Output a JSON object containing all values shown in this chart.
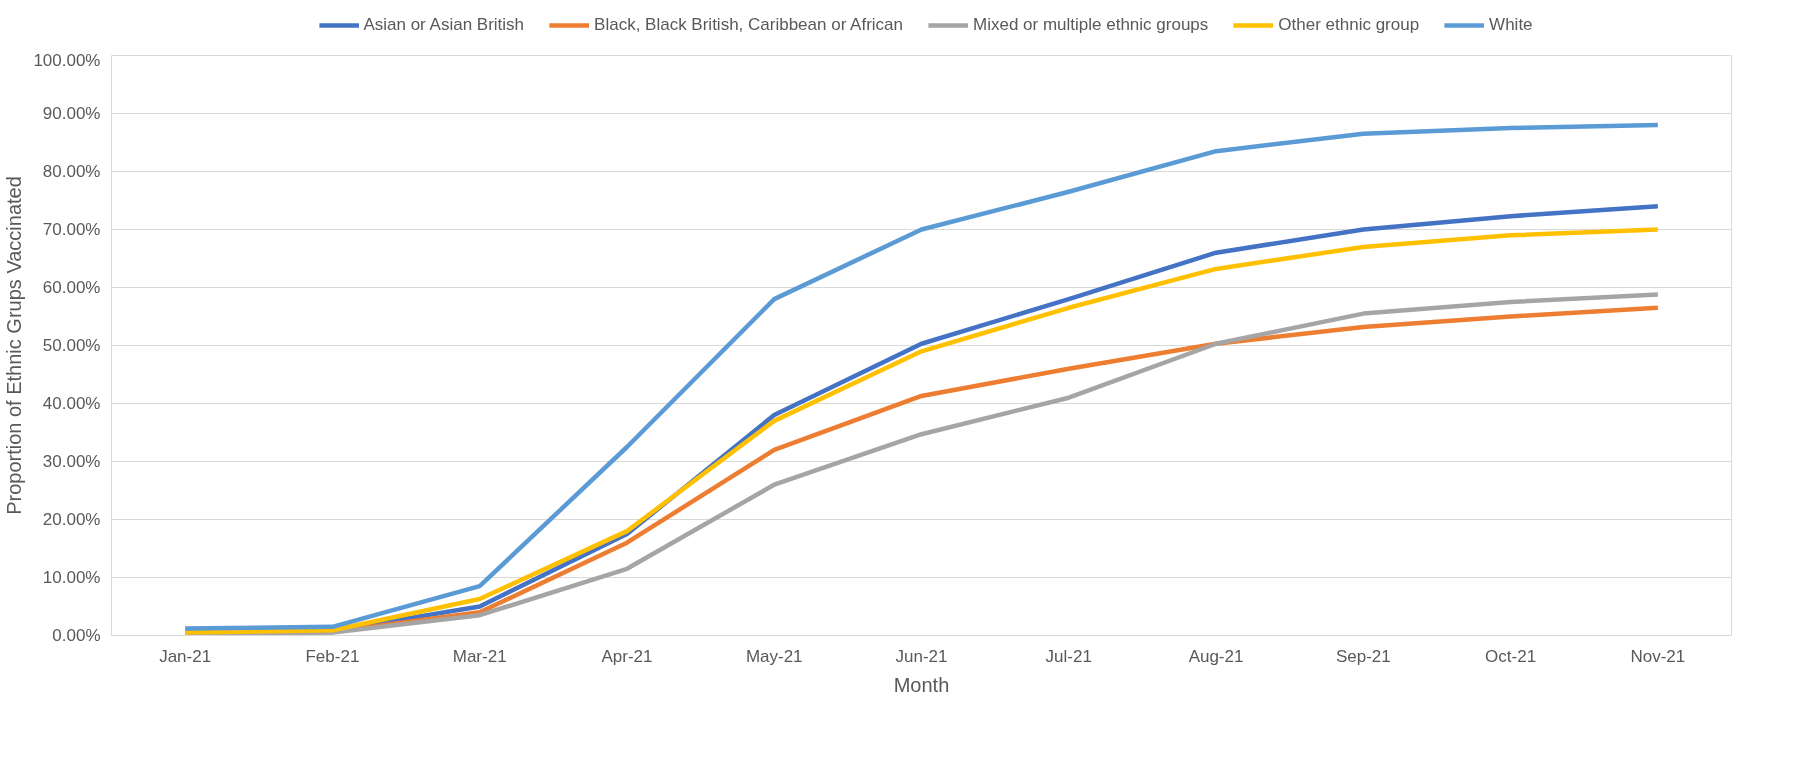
{
  "chart_data": {
    "type": "line",
    "xlabel": "Month",
    "ylabel": "Proportion of Ethnic Grups Vaccinated",
    "categories": [
      "Jan-21",
      "Feb-21",
      "Mar-21",
      "Apr-21",
      "May-21",
      "Jun-21",
      "Jul-21",
      "Aug-21",
      "Sep-21",
      "Oct-21",
      "Nov-21"
    ],
    "series": [
      {
        "name": "Asian or Asian British",
        "color": "#4472c4",
        "values": [
          0.5,
          0.8,
          5,
          17.5,
          38,
          50.3,
          58,
          66,
          70,
          72.3,
          74
        ]
      },
      {
        "name": "Black, Black British, Caribbean or African",
        "color": "#ed7d31",
        "values": [
          0.3,
          0.6,
          4,
          16,
          32,
          41.3,
          46,
          50.3,
          53.2,
          55,
          56.5
        ]
      },
      {
        "name": "Mixed or multiple ethnic groups",
        "color": "#a5a5a5",
        "values": [
          0.3,
          0.5,
          3.5,
          11.5,
          26,
          34.7,
          41,
          50.3,
          55.5,
          57.5,
          58.8
        ]
      },
      {
        "name": "Other ethnic group",
        "color": "#ffc000",
        "values": [
          0.5,
          0.9,
          6.3,
          18,
          37,
          49,
          56.5,
          63.2,
          67,
          69,
          70
        ]
      },
      {
        "name": "White",
        "color": "#5b9bd5",
        "values": [
          1.2,
          1.5,
          8.5,
          32.5,
          58,
          70,
          76.5,
          83.5,
          86.5,
          87.5,
          88
        ]
      }
    ],
    "ylim": [
      0,
      100
    ],
    "yticks": [
      {
        "value": 0,
        "label": "0.00%"
      },
      {
        "value": 10,
        "label": "10.00%"
      },
      {
        "value": 20,
        "label": "20.00%"
      },
      {
        "value": 30,
        "label": "30.00%"
      },
      {
        "value": 40,
        "label": "40.00%"
      },
      {
        "value": 50,
        "label": "50.00%"
      },
      {
        "value": 60,
        "label": "60.00%"
      },
      {
        "value": 70,
        "label": "70.00%"
      },
      {
        "value": 80,
        "label": "80.00%"
      },
      {
        "value": 90,
        "label": "90.00%"
      },
      {
        "value": 100,
        "label": "100.00%"
      }
    ],
    "grid": "y",
    "legend": "top",
    "line_style": "solid",
    "marker": "none"
  }
}
